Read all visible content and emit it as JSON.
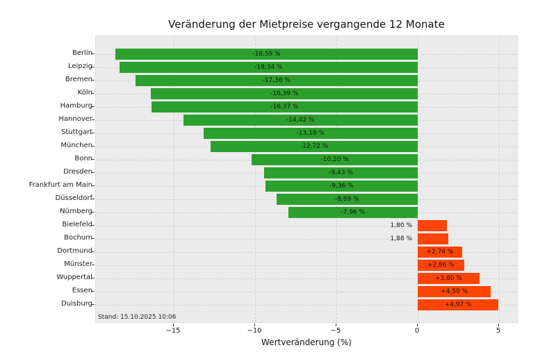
{
  "chart_data": {
    "type": "bar",
    "orientation": "horizontal",
    "title": "Veränderung der Mietpreise vergangende 12 Monate",
    "xlabel": "Wertveränderung (%)",
    "annotation": "Stand: 15.10.2025 10:06",
    "xlim": [
      -19.8,
      6.2
    ],
    "xticks": [
      -15,
      -10,
      -5,
      0,
      5
    ],
    "xtick_labels": [
      "−15",
      "−10",
      "−5",
      "0",
      "5"
    ],
    "grid": "dashed-both-axes",
    "legend": "none",
    "colors": {
      "negative_bar": "#2ca02c",
      "positive_bar": "#ff4500",
      "plot_background": "#ebebeb",
      "figure_background": "#ffffff",
      "label_text": "#111111"
    },
    "bars": [
      {
        "city": "Berlin",
        "value": -18.59,
        "label": "-18,59 %",
        "label_placement": "inside"
      },
      {
        "city": "Leipzig",
        "value": -18.34,
        "label": "-18,34 %",
        "label_placement": "inside"
      },
      {
        "city": "Bremen",
        "value": -17.36,
        "label": "-17,36 %",
        "label_placement": "inside"
      },
      {
        "city": "Köln",
        "value": -16.39,
        "label": "-16,39 %",
        "label_placement": "inside"
      },
      {
        "city": "Hamburg",
        "value": -16.37,
        "label": "-16,37 %",
        "label_placement": "inside"
      },
      {
        "city": "Hannover",
        "value": -14.42,
        "label": "-14,42 %",
        "label_placement": "inside"
      },
      {
        "city": "Stuttgart",
        "value": -13.18,
        "label": "-13,18 %",
        "label_placement": "inside"
      },
      {
        "city": "München",
        "value": -12.72,
        "label": "-12,72 %",
        "label_placement": "inside"
      },
      {
        "city": "Bonn",
        "value": -10.2,
        "label": "-10,20 %",
        "label_placement": "inside"
      },
      {
        "city": "Dresden",
        "value": -9.43,
        "label": "-9,43 %",
        "label_placement": "inside"
      },
      {
        "city": "Frankfurt am Main",
        "value": -9.36,
        "label": "-9,36 %",
        "label_placement": "inside"
      },
      {
        "city": "Düsseldorf",
        "value": -8.69,
        "label": "-8,69 %",
        "label_placement": "inside"
      },
      {
        "city": "Nürnberg",
        "value": -7.96,
        "label": "-7,96 %",
        "label_placement": "inside"
      },
      {
        "city": "Bielefeld",
        "value": 1.8,
        "label": "1,80 %",
        "label_placement": "outside-left"
      },
      {
        "city": "Bochum",
        "value": 1.88,
        "label": "1,88 %",
        "label_placement": "outside-left"
      },
      {
        "city": "Dortmund",
        "value": 2.74,
        "label": "+2,74 %",
        "label_placement": "inside"
      },
      {
        "city": "Münster",
        "value": 2.86,
        "label": "+2,86 %",
        "label_placement": "inside"
      },
      {
        "city": "Wuppertal",
        "value": 3.8,
        "label": "+3,80 %",
        "label_placement": "inside"
      },
      {
        "city": "Essen",
        "value": 4.5,
        "label": "+4,50 %",
        "label_placement": "inside"
      },
      {
        "city": "Duisburg",
        "value": 4.97,
        "label": "+4,97 %",
        "label_placement": "inside"
      }
    ]
  }
}
